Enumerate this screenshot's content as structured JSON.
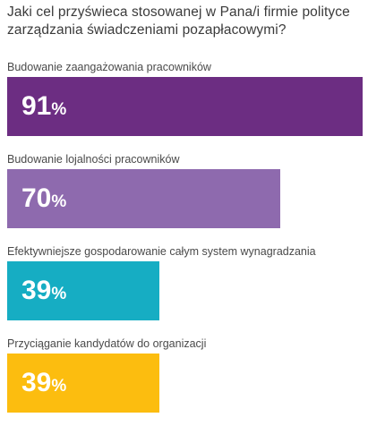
{
  "chart_data": {
    "type": "bar",
    "title": "Jaki cel przyświeca stosowanej w Pana/i firmie polityce zarządzania świadczeniami pozapłacowymi?",
    "categories": [
      "Budowanie zaangażowania pracowników",
      "Budowanie lojalności pracowników",
      "Efektywniejsze gospodarowanie całym system wynagradzania",
      "Przyciąganie kandydatów do organizacji"
    ],
    "values": [
      91,
      70,
      39,
      39
    ],
    "value_suffix": "%",
    "xlim": [
      0,
      100
    ],
    "colors": [
      "#6c2d82",
      "#8e6aae",
      "#16adc3",
      "#fcbd0f"
    ],
    "grid": false
  }
}
